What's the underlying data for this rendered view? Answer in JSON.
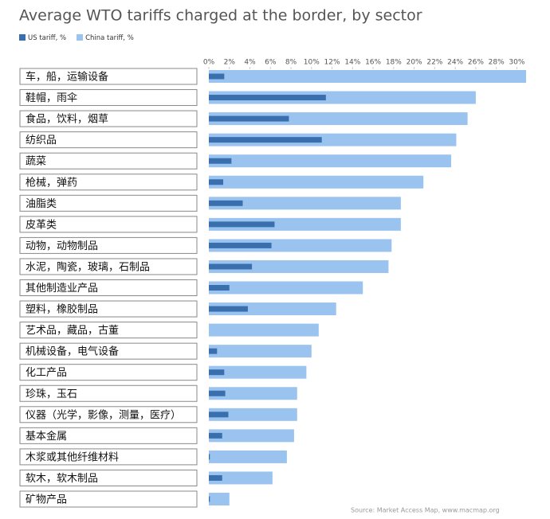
{
  "chart_data": {
    "type": "overlapbar",
    "title": "Average WTO tariffs charged at the border, by sector",
    "source": "Source: Market Access Map, www.macmap.org",
    "categories": [
      "车，船，运输设备",
      "鞋帽，雨伞",
      "食品，饮料，烟草",
      "纺织品",
      "蔬菜",
      "枪械，弹药",
      "油脂类",
      "皮革类",
      "动物，动物制品",
      "水泥，陶瓷，玻璃，石制品",
      "其他制造业产品",
      "塑料，橡胶制品",
      "艺术品，藏品，古董",
      "机械设备，电气设备",
      "化工产品",
      "珍珠，玉石",
      "仪器（光学，影像，测量，医疗）",
      "基本金属",
      "木浆或其他纤维材料",
      "软木，软木制品",
      "矿物产品"
    ],
    "series": [
      {
        "name": "China tariff, %",
        "color": "#9ac3ef",
        "values": [
          30.9,
          26.0,
          25.2,
          24.1,
          23.6,
          20.9,
          18.7,
          18.7,
          17.8,
          17.5,
          15.0,
          12.4,
          10.7,
          10.0,
          9.5,
          8.6,
          8.6,
          8.3,
          7.6,
          6.2,
          2.0
        ]
      },
      {
        "name": "US tariff, %",
        "color": "#3a6fad",
        "values": [
          1.5,
          11.4,
          7.8,
          11.0,
          2.2,
          1.4,
          3.3,
          6.4,
          6.1,
          4.2,
          2.0,
          3.8,
          0,
          0.8,
          1.5,
          1.6,
          1.9,
          1.3,
          0.1,
          1.3,
          0.1
        ]
      }
    ],
    "xlim": [
      0,
      30.9
    ],
    "xticks": [
      {
        "value": 0,
        "label": "0%"
      },
      {
        "value": 2,
        "label": "2%"
      },
      {
        "value": 4,
        "label": "4%"
      },
      {
        "value": 6,
        "label": "6%"
      },
      {
        "value": 8,
        "label": "8%"
      },
      {
        "value": 10,
        "label": "10%"
      },
      {
        "value": 12,
        "label": "12%"
      },
      {
        "value": 14,
        "label": "14%"
      },
      {
        "value": 16,
        "label": "16%"
      },
      {
        "value": 18,
        "label": "18%"
      },
      {
        "value": 20,
        "label": "20%"
      },
      {
        "value": 22,
        "label": "22%"
      },
      {
        "value": 24,
        "label": "24%"
      },
      {
        "value": 26,
        "label": "26%"
      },
      {
        "value": 28,
        "label": "28%"
      },
      {
        "value": 30,
        "label": "30%"
      }
    ]
  }
}
